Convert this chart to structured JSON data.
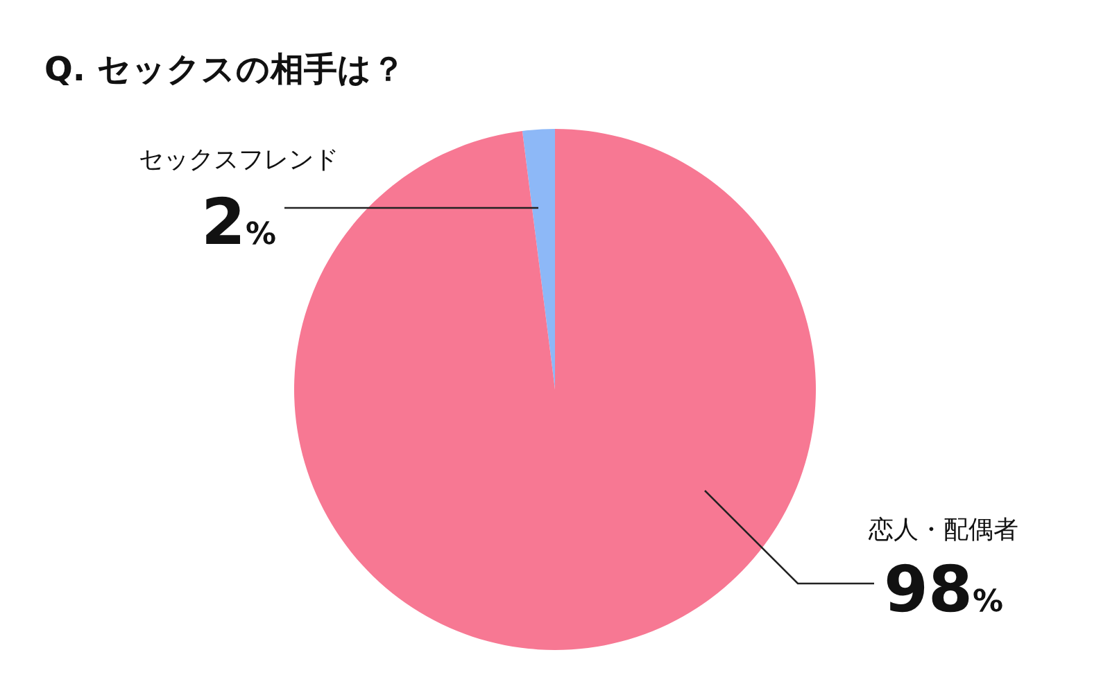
{
  "chart_data": {
    "type": "pie",
    "title": "Q. セックスの相手は？",
    "categories": [
      "セックスフレンド",
      "恋人・配偶者"
    ],
    "values": [
      2,
      98
    ],
    "colors": [
      "#8db8f7",
      "#f77893"
    ],
    "value_labels": [
      "2%",
      "98%"
    ]
  }
}
